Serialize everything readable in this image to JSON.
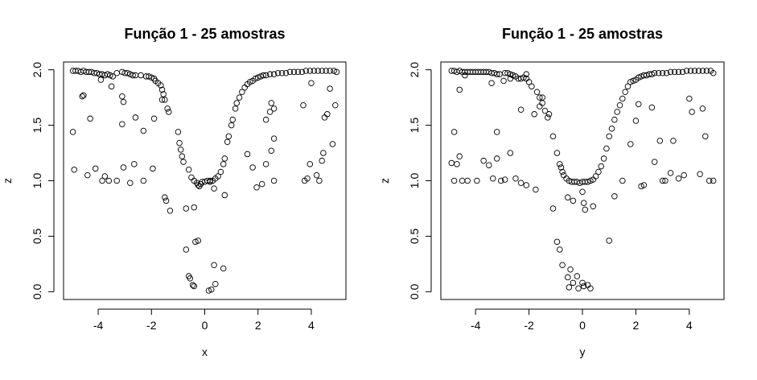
{
  "chart_data": [
    {
      "type": "scatter",
      "title": "Função 1 - 25 amostras",
      "xlabel": "x",
      "ylabel": "z",
      "xlim": [
        -5.3,
        5.3
      ],
      "ylim": [
        -0.07,
        2.07
      ],
      "xticks": [
        -4,
        -2,
        0,
        2,
        4
      ],
      "yticks": [
        0.0,
        0.5,
        1.0,
        1.5,
        2.0
      ],
      "xtick_labels": [
        "-4",
        "-2",
        "0",
        "2",
        "4"
      ],
      "ytick_labels": [
        "0.0",
        "0.5",
        "1.0",
        "1.5",
        "2.0"
      ],
      "grid": false,
      "points": [
        [
          -4.95,
          1.99
        ],
        [
          -4.85,
          1.99
        ],
        [
          -4.75,
          1.99
        ],
        [
          -4.65,
          1.98
        ],
        [
          -4.55,
          1.99
        ],
        [
          -4.45,
          1.98
        ],
        [
          -4.35,
          1.98
        ],
        [
          -4.25,
          1.98
        ],
        [
          -4.15,
          1.97
        ],
        [
          -4.05,
          1.97
        ],
        [
          -3.95,
          1.96
        ],
        [
          -3.85,
          1.96
        ],
        [
          -3.75,
          1.95
        ],
        [
          -3.65,
          1.96
        ],
        [
          -3.55,
          1.95
        ],
        [
          -3.45,
          1.94
        ],
        [
          -3.3,
          1.97
        ],
        [
          -3.1,
          1.98
        ],
        [
          -3.0,
          1.97
        ],
        [
          -2.9,
          1.97
        ],
        [
          -2.8,
          1.96
        ],
        [
          -2.7,
          1.95
        ],
        [
          -2.6,
          1.95
        ],
        [
          -2.4,
          1.95
        ],
        [
          -2.2,
          1.94
        ],
        [
          -2.1,
          1.94
        ],
        [
          -2.0,
          1.93
        ],
        [
          -1.9,
          1.92
        ],
        [
          -1.85,
          1.9
        ],
        [
          -1.75,
          1.88
        ],
        [
          -1.65,
          1.86
        ],
        [
          -1.6,
          1.82
        ],
        [
          -1.55,
          1.78
        ],
        [
          -1.5,
          1.73
        ],
        [
          -1.4,
          1.65
        ],
        [
          -1.35,
          1.62
        ],
        [
          -1.0,
          1.44
        ],
        [
          -0.95,
          1.34
        ],
        [
          -0.9,
          1.28
        ],
        [
          -0.85,
          1.22
        ],
        [
          -0.8,
          1.17
        ],
        [
          -0.6,
          1.1
        ],
        [
          -0.5,
          1.03
        ],
        [
          -0.4,
          1.0
        ],
        [
          -0.3,
          0.98
        ],
        [
          -0.25,
          0.96
        ],
        [
          -0.2,
          0.95
        ],
        [
          -0.15,
          0.97
        ],
        [
          -0.1,
          0.99
        ],
        [
          0.0,
          0.99
        ],
        [
          0.1,
          1.0
        ],
        [
          0.2,
          0.99
        ],
        [
          0.3,
          1.0
        ],
        [
          0.35,
          0.93
        ],
        [
          0.4,
          1.02
        ],
        [
          0.5,
          1.04
        ],
        [
          0.6,
          1.08
        ],
        [
          0.7,
          1.15
        ],
        [
          0.75,
          1.2
        ],
        [
          0.85,
          1.35
        ],
        [
          0.9,
          1.4
        ],
        [
          1.0,
          1.5
        ],
        [
          1.05,
          1.55
        ],
        [
          1.15,
          1.65
        ],
        [
          1.2,
          1.7
        ],
        [
          1.3,
          1.75
        ],
        [
          1.4,
          1.8
        ],
        [
          1.5,
          1.84
        ],
        [
          1.6,
          1.87
        ],
        [
          1.7,
          1.89
        ],
        [
          1.8,
          1.9
        ],
        [
          1.9,
          1.92
        ],
        [
          2.0,
          1.93
        ],
        [
          2.1,
          1.94
        ],
        [
          2.2,
          1.95
        ],
        [
          2.3,
          1.95
        ],
        [
          2.45,
          1.96
        ],
        [
          2.6,
          1.96
        ],
        [
          2.75,
          1.97
        ],
        [
          2.9,
          1.97
        ],
        [
          3.05,
          1.97
        ],
        [
          3.2,
          1.98
        ],
        [
          3.35,
          1.98
        ],
        [
          3.5,
          1.98
        ],
        [
          3.65,
          1.98
        ],
        [
          3.8,
          1.99
        ],
        [
          3.95,
          1.99
        ],
        [
          4.1,
          1.99
        ],
        [
          4.25,
          1.99
        ],
        [
          4.4,
          1.99
        ],
        [
          4.55,
          1.99
        ],
        [
          4.7,
          1.99
        ],
        [
          4.85,
          1.99
        ],
        [
          4.95,
          1.98
        ],
        [
          -4.95,
          1.44
        ],
        [
          -4.6,
          1.76
        ],
        [
          -4.55,
          1.77
        ],
        [
          -4.3,
          1.56
        ],
        [
          -3.9,
          1.91
        ],
        [
          -3.5,
          1.85
        ],
        [
          -3.1,
          1.76
        ],
        [
          -3.05,
          1.71
        ],
        [
          -3.1,
          1.51
        ],
        [
          -2.6,
          1.57
        ],
        [
          -2.3,
          1.45
        ],
        [
          -1.9,
          1.56
        ],
        [
          -1.6,
          1.73
        ],
        [
          -4.9,
          1.1
        ],
        [
          -4.4,
          1.05
        ],
        [
          -4.1,
          1.11
        ],
        [
          -3.85,
          1.0
        ],
        [
          -3.75,
          1.04
        ],
        [
          -3.6,
          1.0
        ],
        [
          -3.3,
          1.0
        ],
        [
          -3.05,
          1.12
        ],
        [
          -2.8,
          0.98
        ],
        [
          -2.65,
          1.15
        ],
        [
          -2.3,
          1.0
        ],
        [
          -1.95,
          1.11
        ],
        [
          -1.5,
          0.85
        ],
        [
          -1.45,
          0.82
        ],
        [
          -1.3,
          0.73
        ],
        [
          -0.7,
          0.75
        ],
        [
          -0.4,
          0.76
        ],
        [
          -0.35,
          0.45
        ],
        [
          -0.25,
          0.46
        ],
        [
          -0.7,
          0.38
        ],
        [
          -0.6,
          0.14
        ],
        [
          -0.55,
          0.12
        ],
        [
          -0.45,
          0.06
        ],
        [
          -0.4,
          0.05
        ],
        [
          0.15,
          0.01
        ],
        [
          0.25,
          0.02
        ],
        [
          0.4,
          0.07
        ],
        [
          0.35,
          0.24
        ],
        [
          0.7,
          0.21
        ],
        [
          0.2,
          1.0
        ],
        [
          0.75,
          0.87
        ],
        [
          1.6,
          1.24
        ],
        [
          1.8,
          1.12
        ],
        [
          1.95,
          0.94
        ],
        [
          2.15,
          0.97
        ],
        [
          2.3,
          1.15
        ],
        [
          2.5,
          1.27
        ],
        [
          2.6,
          1.0
        ],
        [
          2.6,
          1.38
        ],
        [
          2.3,
          1.55
        ],
        [
          2.45,
          1.62
        ],
        [
          2.5,
          1.7
        ],
        [
          2.6,
          1.65
        ],
        [
          3.7,
          1.68
        ],
        [
          3.75,
          1.0
        ],
        [
          3.85,
          1.02
        ],
        [
          3.95,
          1.15
        ],
        [
          4.0,
          1.88
        ],
        [
          4.2,
          1.05
        ],
        [
          4.3,
          1.0
        ],
        [
          4.4,
          1.18
        ],
        [
          4.45,
          1.25
        ],
        [
          4.5,
          1.57
        ],
        [
          4.6,
          1.6
        ],
        [
          4.7,
          1.83
        ],
        [
          4.8,
          1.33
        ],
        [
          4.9,
          1.68
        ]
      ]
    },
    {
      "type": "scatter",
      "title": "Função 1 - 25 amostras",
      "xlabel": "y",
      "ylabel": "z",
      "xlim": [
        -5.3,
        5.3
      ],
      "ylim": [
        -0.07,
        2.07
      ],
      "xticks": [
        -4,
        -2,
        0,
        2,
        4
      ],
      "yticks": [
        0.0,
        0.5,
        1.0,
        1.5,
        2.0
      ],
      "xtick_labels": [
        "-4",
        "-2",
        "0",
        "2",
        "4"
      ],
      "ytick_labels": [
        "0.0",
        "0.5",
        "1.0",
        "1.5",
        "2.0"
      ],
      "grid": false,
      "points": [
        [
          -4.9,
          1.99
        ],
        [
          -4.8,
          1.99
        ],
        [
          -4.7,
          1.98
        ],
        [
          -4.6,
          1.99
        ],
        [
          -4.5,
          1.98
        ],
        [
          -4.4,
          1.98
        ],
        [
          -4.3,
          1.98
        ],
        [
          -4.2,
          1.98
        ],
        [
          -4.1,
          1.98
        ],
        [
          -4.0,
          1.98
        ],
        [
          -3.9,
          1.98
        ],
        [
          -3.8,
          1.98
        ],
        [
          -3.7,
          1.98
        ],
        [
          -3.6,
          1.98
        ],
        [
          -3.5,
          1.98
        ],
        [
          -3.4,
          1.97
        ],
        [
          -3.3,
          1.97
        ],
        [
          -3.2,
          1.96
        ],
        [
          -3.1,
          1.96
        ],
        [
          -2.9,
          1.97
        ],
        [
          -2.8,
          1.97
        ],
        [
          -2.7,
          1.96
        ],
        [
          -2.6,
          1.95
        ],
        [
          -2.5,
          1.94
        ],
        [
          -2.4,
          1.92
        ],
        [
          -2.3,
          1.92
        ],
        [
          -2.2,
          1.93
        ],
        [
          -2.1,
          1.92
        ],
        [
          -2.0,
          1.89
        ],
        [
          -1.9,
          1.85
        ],
        [
          -1.7,
          1.8
        ],
        [
          -1.6,
          1.75
        ],
        [
          -1.5,
          1.7
        ],
        [
          -1.4,
          1.63
        ],
        [
          -1.3,
          1.57
        ],
        [
          -1.1,
          1.4
        ],
        [
          -0.95,
          1.25
        ],
        [
          -0.85,
          1.15
        ],
        [
          -0.8,
          1.12
        ],
        [
          -0.75,
          1.08
        ],
        [
          -0.7,
          1.05
        ],
        [
          -0.6,
          1.02
        ],
        [
          -0.5,
          1.0
        ],
        [
          -0.4,
          0.99
        ],
        [
          -0.3,
          0.99
        ],
        [
          -0.2,
          0.99
        ],
        [
          -0.1,
          0.98
        ],
        [
          0.0,
          0.99
        ],
        [
          0.1,
          0.99
        ],
        [
          0.2,
          0.99
        ],
        [
          0.3,
          1.0
        ],
        [
          0.4,
          1.01
        ],
        [
          0.5,
          1.04
        ],
        [
          0.6,
          1.08
        ],
        [
          0.7,
          1.13
        ],
        [
          0.8,
          1.2
        ],
        [
          0.9,
          1.29
        ],
        [
          1.0,
          1.4
        ],
        [
          1.1,
          1.47
        ],
        [
          1.2,
          1.55
        ],
        [
          1.3,
          1.62
        ],
        [
          1.4,
          1.68
        ],
        [
          1.5,
          1.74
        ],
        [
          1.6,
          1.8
        ],
        [
          1.7,
          1.85
        ],
        [
          1.8,
          1.89
        ],
        [
          1.9,
          1.9
        ],
        [
          2.0,
          1.91
        ],
        [
          2.1,
          1.93
        ],
        [
          2.2,
          1.94
        ],
        [
          2.3,
          1.95
        ],
        [
          2.4,
          1.95
        ],
        [
          2.5,
          1.96
        ],
        [
          2.6,
          1.96
        ],
        [
          2.7,
          1.97
        ],
        [
          2.85,
          1.97
        ],
        [
          3.0,
          1.97
        ],
        [
          3.15,
          1.97
        ],
        [
          3.3,
          1.98
        ],
        [
          3.45,
          1.98
        ],
        [
          3.6,
          1.98
        ],
        [
          3.75,
          1.98
        ],
        [
          3.9,
          1.99
        ],
        [
          4.05,
          1.99
        ],
        [
          4.2,
          1.99
        ],
        [
          4.35,
          1.99
        ],
        [
          4.5,
          1.99
        ],
        [
          4.65,
          1.99
        ],
        [
          4.8,
          1.99
        ],
        [
          4.9,
          1.97
        ],
        [
          -4.8,
          1.44
        ],
        [
          -4.6,
          1.82
        ],
        [
          -4.4,
          1.95
        ],
        [
          -3.4,
          1.88
        ],
        [
          -3.2,
          1.44
        ],
        [
          -2.95,
          1.9
        ],
        [
          -2.7,
          1.92
        ],
        [
          -2.3,
          1.64
        ],
        [
          -2.1,
          1.96
        ],
        [
          -1.8,
          1.6
        ],
        [
          -1.6,
          1.67
        ],
        [
          -1.25,
          1.6
        ],
        [
          -1.5,
          1.75
        ],
        [
          -4.9,
          1.16
        ],
        [
          -4.7,
          1.15
        ],
        [
          -4.6,
          1.22
        ],
        [
          -4.8,
          1.0
        ],
        [
          -4.5,
          1.0
        ],
        [
          -4.3,
          1.0
        ],
        [
          -3.95,
          1.0
        ],
        [
          -3.7,
          1.18
        ],
        [
          -3.5,
          1.14
        ],
        [
          -3.35,
          1.02
        ],
        [
          -3.2,
          1.2
        ],
        [
          -3.05,
          1.0
        ],
        [
          -2.9,
          1.01
        ],
        [
          -2.7,
          1.25
        ],
        [
          -2.5,
          1.02
        ],
        [
          -2.3,
          0.98
        ],
        [
          -2.1,
          0.96
        ],
        [
          -1.75,
          0.92
        ],
        [
          -1.1,
          0.75
        ],
        [
          -0.95,
          0.45
        ],
        [
          -0.85,
          0.38
        ],
        [
          -0.75,
          0.24
        ],
        [
          -0.55,
          0.13
        ],
        [
          -0.5,
          0.04
        ],
        [
          -0.45,
          0.2
        ],
        [
          -0.35,
          0.08
        ],
        [
          -0.2,
          0.14
        ],
        [
          -0.15,
          0.03
        ],
        [
          0.0,
          0.08
        ],
        [
          0.2,
          0.06
        ],
        [
          0.3,
          0.03
        ],
        [
          0.05,
          0.05
        ],
        [
          -0.55,
          0.85
        ],
        [
          -0.35,
          0.82
        ],
        [
          0.0,
          0.9
        ],
        [
          0.05,
          0.8
        ],
        [
          0.1,
          0.74
        ],
        [
          0.4,
          0.77
        ],
        [
          1.0,
          0.46
        ],
        [
          1.2,
          0.86
        ],
        [
          1.5,
          1.0
        ],
        [
          1.8,
          1.33
        ],
        [
          2.0,
          1.54
        ],
        [
          2.1,
          1.69
        ],
        [
          2.3,
          0.96
        ],
        [
          2.2,
          0.95
        ],
        [
          2.6,
          1.66
        ],
        [
          2.7,
          1.17
        ],
        [
          2.9,
          1.36
        ],
        [
          3.0,
          1.0
        ],
        [
          3.1,
          1.0
        ],
        [
          3.3,
          1.07
        ],
        [
          3.4,
          1.36
        ],
        [
          3.6,
          1.02
        ],
        [
          3.8,
          1.05
        ],
        [
          4.0,
          1.74
        ],
        [
          4.1,
          1.62
        ],
        [
          4.4,
          1.06
        ],
        [
          4.5,
          1.65
        ],
        [
          4.6,
          1.4
        ],
        [
          4.75,
          1.0
        ],
        [
          4.9,
          1.0
        ]
      ]
    }
  ]
}
